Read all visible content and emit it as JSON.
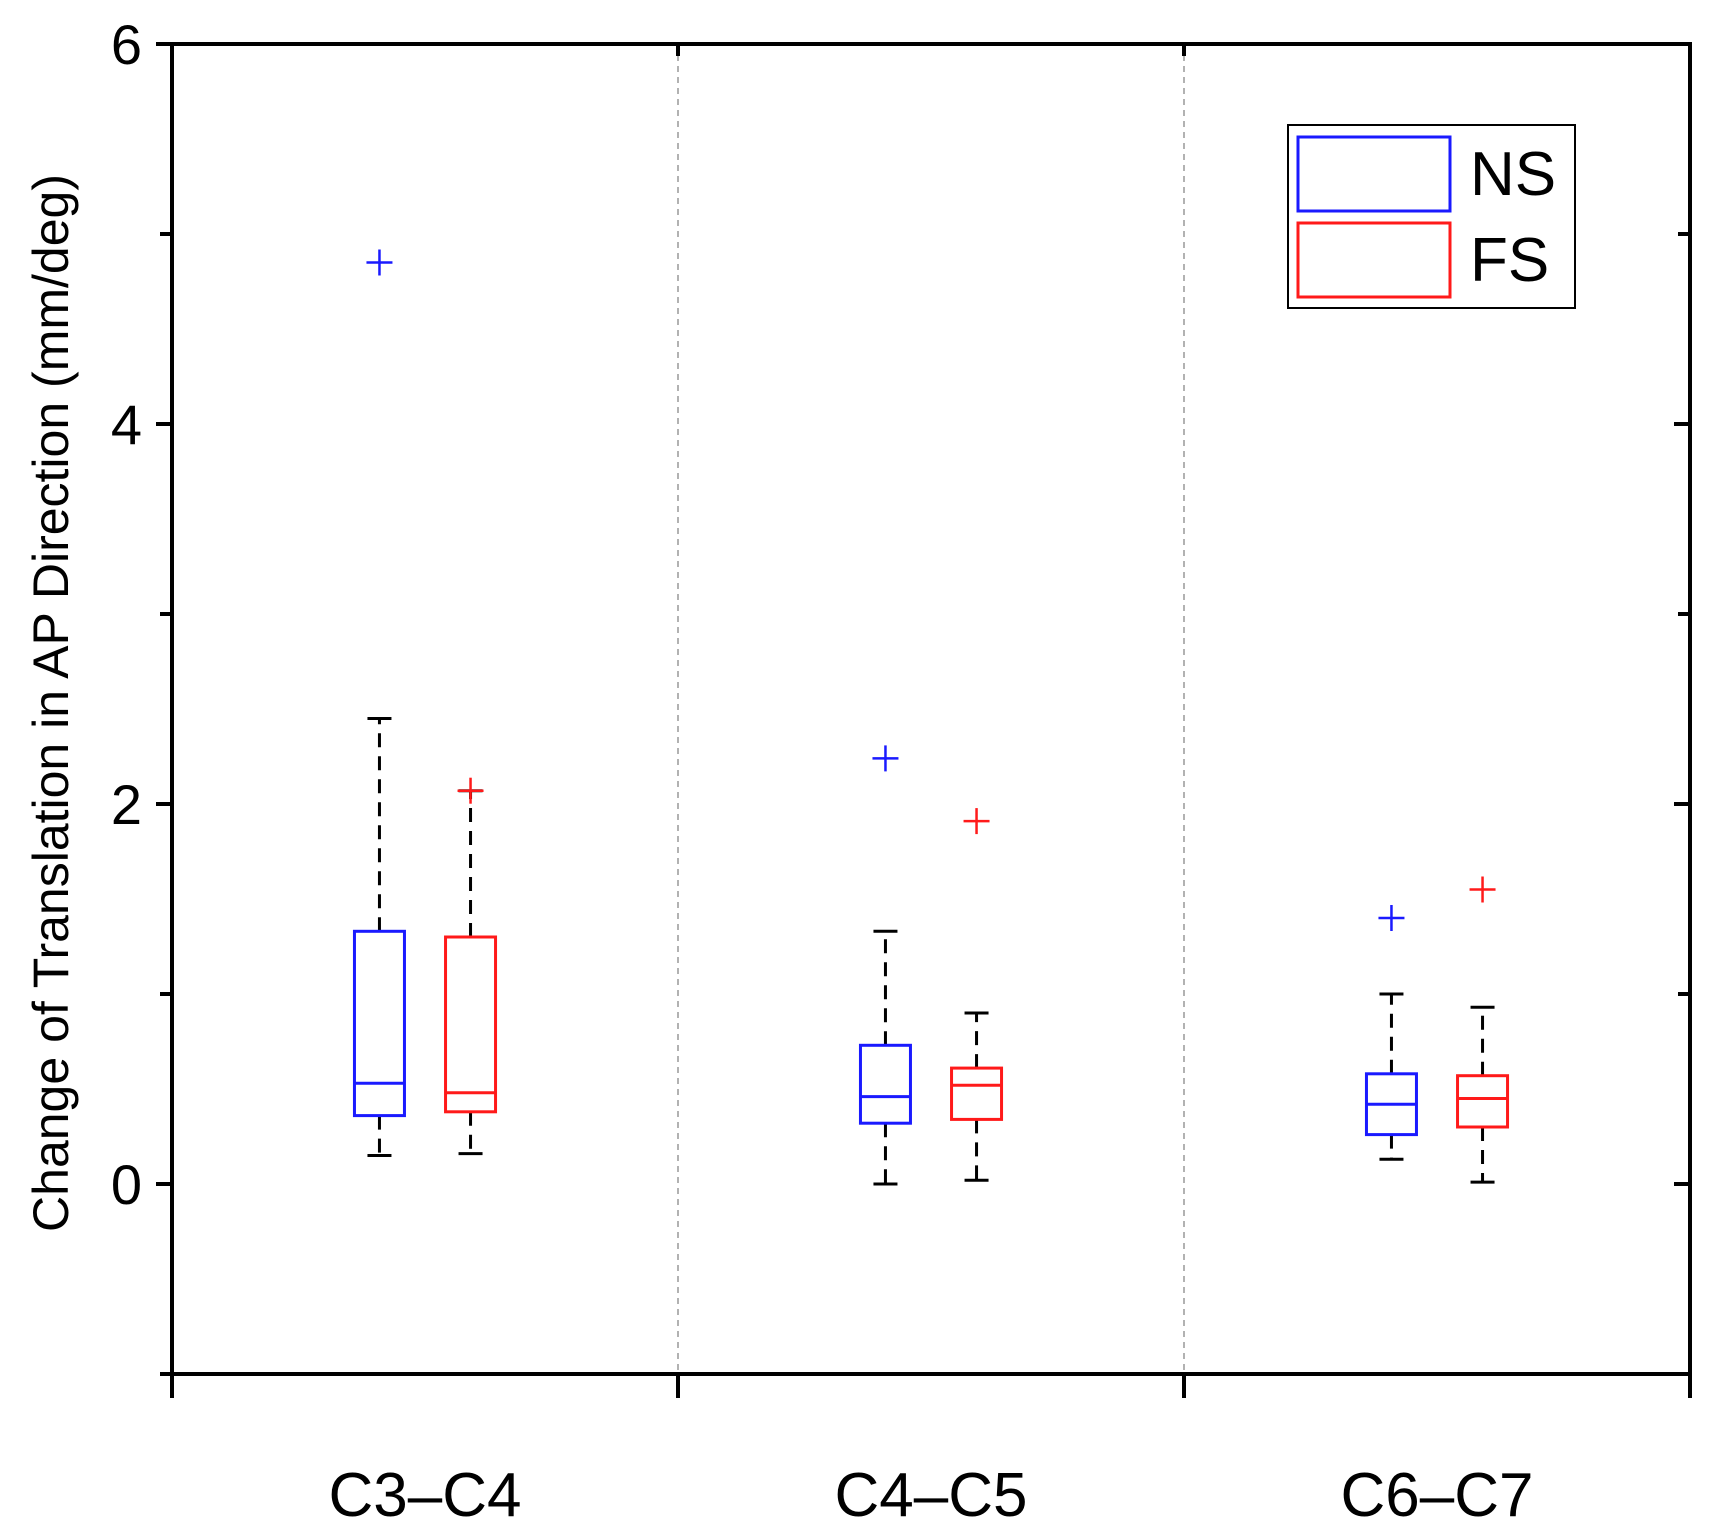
{
  "chart_data": {
    "type": "box",
    "title": "",
    "xlabel": "",
    "ylabel": "Change of Translation in AP Direction (mm/deg)",
    "ylim": [
      -1,
      6
    ],
    "yticks": [
      0,
      2,
      4,
      6
    ],
    "categories": [
      "C3–C4",
      "C4–C5",
      "C6–C7"
    ],
    "grid": false,
    "category_separators": true,
    "legend": {
      "position": "top-right",
      "entries": [
        "NS",
        "FS"
      ]
    },
    "series": [
      {
        "name": "NS",
        "color": "#1a1aff",
        "boxes": [
          {
            "whisker_low": 0.15,
            "q1": 0.36,
            "median": 0.53,
            "q3": 1.33,
            "whisker_high": 2.45,
            "outliers": [
              4.85
            ]
          },
          {
            "whisker_low": 0.0,
            "q1": 0.32,
            "median": 0.46,
            "q3": 0.73,
            "whisker_high": 1.33,
            "outliers": [
              2.24
            ]
          },
          {
            "whisker_low": 0.13,
            "q1": 0.26,
            "median": 0.42,
            "q3": 0.58,
            "whisker_high": 1.0,
            "outliers": [
              1.4
            ]
          }
        ]
      },
      {
        "name": "FS",
        "color": "#ff1a1a",
        "boxes": [
          {
            "whisker_low": 0.16,
            "q1": 0.38,
            "median": 0.48,
            "q3": 1.3,
            "whisker_high": 2.07,
            "outliers": [
              2.07
            ]
          },
          {
            "whisker_low": 0.02,
            "q1": 0.34,
            "median": 0.52,
            "q3": 0.61,
            "whisker_high": 0.9,
            "outliers": [
              1.91
            ]
          },
          {
            "whisker_low": 0.01,
            "q1": 0.3,
            "median": 0.45,
            "q3": 0.57,
            "whisker_high": 0.93,
            "outliers": [
              1.55
            ]
          }
        ]
      }
    ]
  }
}
